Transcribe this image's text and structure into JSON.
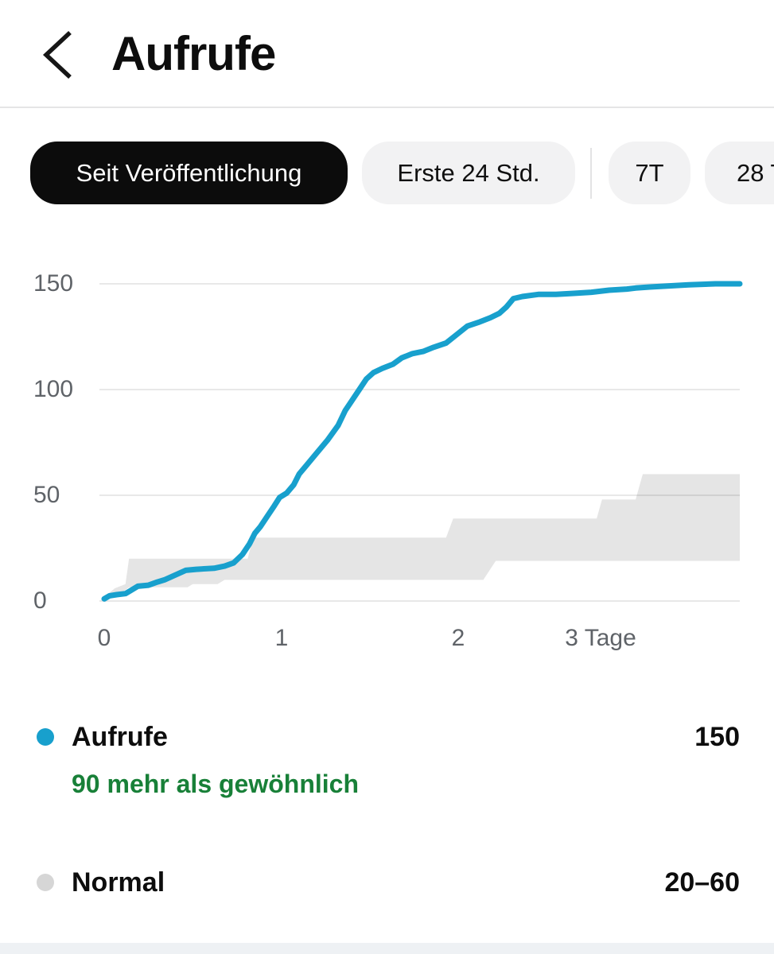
{
  "header": {
    "title": "Aufrufe",
    "back_icon": "chevron-left"
  },
  "tabs": [
    {
      "label": "Seit Veröffentlichung",
      "active": true
    },
    {
      "label": "Erste 24 Std.",
      "active": false
    },
    {
      "label": "7T",
      "active": false
    },
    {
      "label": "28 T",
      "active": false
    }
  ],
  "colors": {
    "accent_blue": "#18a0cd",
    "normal_band_gray": "#e5e5e5",
    "normal_dot_gray": "#d6d6d6",
    "positive_green": "#188038",
    "axis_gray": "#5f6368",
    "active_pill_bg": "#0c0c0c",
    "inactive_pill_bg": "#f2f2f3"
  },
  "chart_data": {
    "type": "line",
    "title": "",
    "xlabel": "Tage",
    "ylabel": "",
    "xlim": [
      0,
      3.588
    ],
    "ylim": [
      0,
      150
    ],
    "grid": "horizontal",
    "legend_position": "below",
    "y_ticks": [
      0,
      50,
      100,
      150
    ],
    "x_ticks": [
      {
        "value": 0,
        "label": "0"
      },
      {
        "value": 1,
        "label": "1"
      },
      {
        "value": 2,
        "label": "2"
      },
      {
        "value": 3,
        "label": "3 Tage"
      }
    ],
    "series": [
      {
        "name": "Aufrufe",
        "type": "line",
        "color": "#18a0cd",
        "final_value": 150,
        "points": [
          [
            0,
            1
          ],
          [
            0.03,
            2.5
          ],
          [
            0.07,
            3
          ],
          [
            0.12,
            3.5
          ],
          [
            0.15,
            5
          ],
          [
            0.19,
            7
          ],
          [
            0.25,
            7.5
          ],
          [
            0.3,
            9
          ],
          [
            0.34,
            10
          ],
          [
            0.38,
            11.5
          ],
          [
            0.42,
            13
          ],
          [
            0.46,
            14.5
          ],
          [
            0.52,
            15
          ],
          [
            0.62,
            15.5
          ],
          [
            0.68,
            16.5
          ],
          [
            0.73,
            18
          ],
          [
            0.78,
            22
          ],
          [
            0.82,
            27
          ],
          [
            0.85,
            32
          ],
          [
            0.88,
            35
          ],
          [
            0.92,
            40
          ],
          [
            0.96,
            45
          ],
          [
            0.99,
            49
          ],
          [
            1.03,
            51
          ],
          [
            1.07,
            55
          ],
          [
            1.1,
            60
          ],
          [
            1.15,
            65
          ],
          [
            1.2,
            70
          ],
          [
            1.26,
            76
          ],
          [
            1.32,
            83
          ],
          [
            1.36,
            90
          ],
          [
            1.4,
            95
          ],
          [
            1.44,
            100
          ],
          [
            1.48,
            105
          ],
          [
            1.52,
            108
          ],
          [
            1.57,
            110
          ],
          [
            1.63,
            112
          ],
          [
            1.68,
            115
          ],
          [
            1.74,
            117
          ],
          [
            1.8,
            118
          ],
          [
            1.86,
            120
          ],
          [
            1.93,
            122
          ],
          [
            1.99,
            126
          ],
          [
            2.05,
            130
          ],
          [
            2.12,
            132
          ],
          [
            2.18,
            134
          ],
          [
            2.23,
            136
          ],
          [
            2.27,
            139
          ],
          [
            2.31,
            143
          ],
          [
            2.36,
            144
          ],
          [
            2.45,
            145
          ],
          [
            2.55,
            145
          ],
          [
            2.65,
            145.5
          ],
          [
            2.75,
            146
          ],
          [
            2.85,
            147
          ],
          [
            2.95,
            147.5
          ],
          [
            3.0,
            148
          ],
          [
            3.08,
            148.5
          ],
          [
            3.18,
            149
          ],
          [
            3.3,
            149.5
          ],
          [
            3.45,
            150
          ],
          [
            3.588,
            150
          ]
        ]
      },
      {
        "name": "Normal",
        "type": "band",
        "color": "#e5e5e5",
        "range_label": "20–60",
        "upper": [
          [
            0,
            2
          ],
          [
            0.06,
            6
          ],
          [
            0.12,
            8
          ],
          [
            0.14,
            20
          ],
          [
            0.81,
            20
          ],
          [
            0.84,
            30
          ],
          [
            1.93,
            30
          ],
          [
            1.97,
            39
          ],
          [
            2.78,
            39
          ],
          [
            2.81,
            48
          ],
          [
            3.0,
            48
          ],
          [
            3.04,
            60
          ],
          [
            3.588,
            60
          ]
        ],
        "lower": [
          [
            0,
            1
          ],
          [
            0.1,
            4
          ],
          [
            0.14,
            6.5
          ],
          [
            0.47,
            6.5
          ],
          [
            0.5,
            8
          ],
          [
            0.64,
            8
          ],
          [
            0.68,
            10
          ],
          [
            2.14,
            10
          ],
          [
            2.21,
            19
          ],
          [
            3.588,
            19
          ]
        ]
      }
    ]
  },
  "legend": {
    "rows": [
      {
        "label": "Aufrufe",
        "value": "150",
        "dot_color": "#18a0cd",
        "note": "90 mehr als gewöhnlich",
        "note_color": "#188038"
      },
      {
        "label": "Normal",
        "value": "20–60",
        "dot_color": "#d6d6d6"
      }
    ]
  }
}
